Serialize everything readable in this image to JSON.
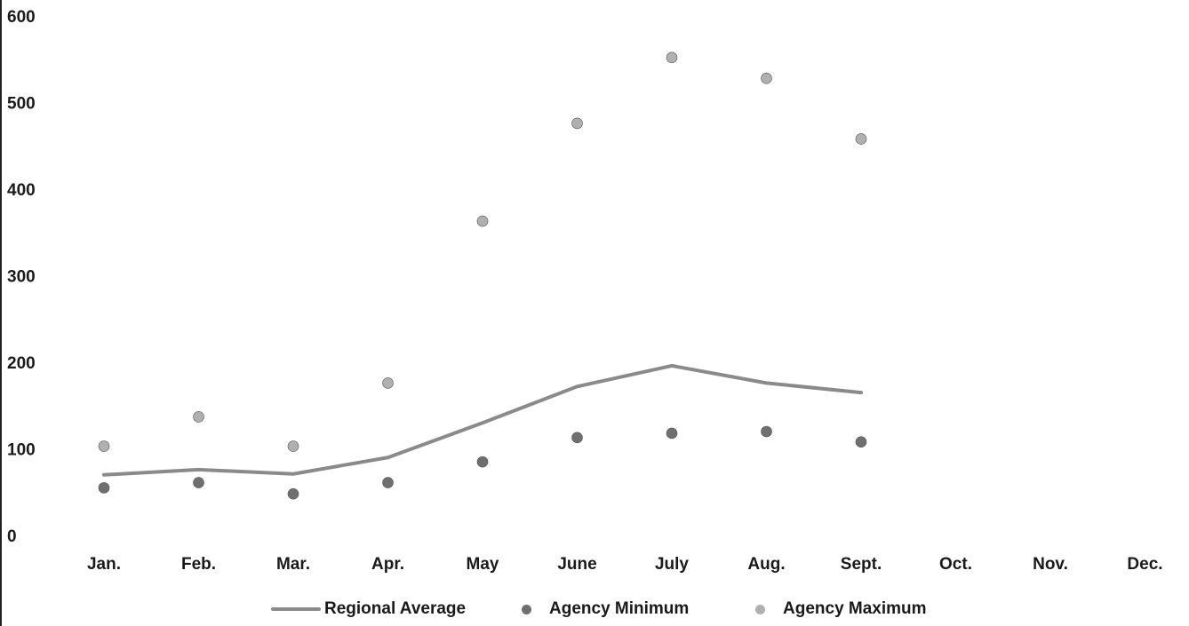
{
  "chart_data": {
    "type": "line",
    "title": "",
    "xlabel": "",
    "ylabel": "",
    "categories": [
      "Jan.",
      "Feb.",
      "Mar.",
      "Apr.",
      "May",
      "June",
      "July",
      "Aug.",
      "Sept.",
      "Oct.",
      "Nov.",
      "Dec."
    ],
    "ylim": [
      0,
      600
    ],
    "yticks": [
      "0",
      "100",
      "200",
      "300",
      "400",
      "500",
      "600"
    ],
    "grid": false,
    "legend_position": "bottom",
    "series": [
      {
        "name": "Regional Average",
        "kind": "line",
        "color": "#8a8a8a",
        "values": [
          70,
          76,
          71,
          90,
          130,
          172,
          196,
          176,
          165,
          null,
          null,
          null
        ]
      },
      {
        "name": "Agency Minimum",
        "kind": "scatter",
        "color": "#6f6f6f",
        "values": [
          55,
          61,
          48,
          61,
          85,
          113,
          118,
          120,
          108,
          null,
          null,
          null
        ]
      },
      {
        "name": "Agency Maximum",
        "kind": "scatter",
        "color": "#b0b0b0",
        "values": [
          103,
          137,
          103,
          176,
          363,
          476,
          552,
          528,
          458,
          null,
          null,
          null
        ]
      }
    ]
  }
}
